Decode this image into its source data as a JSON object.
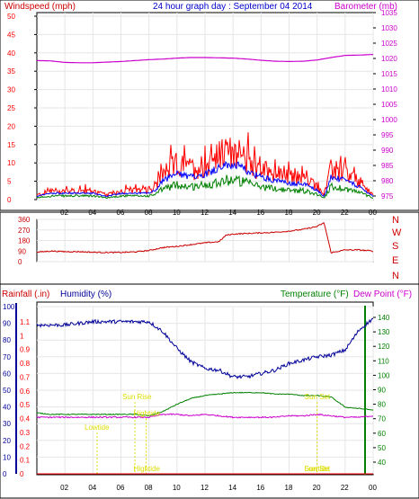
{
  "colors": {
    "wind": "#ff0000",
    "gust": "#ff0000",
    "wind_avg": "#0000ff",
    "wind_low": "#008000",
    "barometer": "#cc00cc",
    "direction": "#cc0000",
    "humidity": "#000099",
    "temperature": "#008000",
    "dewpoint": "#cc00cc",
    "rainfall": "#ff0000",
    "sun": "#dddd00",
    "grid": "#e6e6e6",
    "axis": "#000000"
  },
  "panel_top": {
    "title": "24 hour graph day : September 04 2014",
    "left_label": "Windspeed (mph)",
    "right_label": "Barometer (mb)",
    "left_ticks": [
      "0",
      "5",
      "10",
      "15",
      "20",
      "25",
      "30",
      "35",
      "40",
      "45",
      "50"
    ],
    "right_ticks": [
      "975",
      "980",
      "985",
      "990",
      "995",
      "1000",
      "1005",
      "1010",
      "1015",
      "1020",
      "1025",
      "1030",
      "1035"
    ],
    "x_ticks": [
      "02",
      "04",
      "06",
      "08",
      "10",
      "12",
      "14",
      "16",
      "18",
      "20",
      "22",
      "00"
    ]
  },
  "panel_mid": {
    "left_ticks": [
      "0",
      "90",
      "180",
      "270",
      "360"
    ],
    "compass": [
      "N",
      "W",
      "S",
      "E",
      "N"
    ]
  },
  "panel_bot": {
    "rain_label": "Rainfall (.in)",
    "humidity_label": "Humidity (%)",
    "temp_label": "Temperature (°F)",
    "dew_label": "Dew Point (°F)",
    "humidity_ticks": [
      "0",
      "10",
      "20",
      "30",
      "40",
      "50",
      "60",
      "70",
      "80",
      "90",
      "100"
    ],
    "rain_ticks": [
      "0",
      "0.1",
      "0.2",
      "0.3",
      "0.4",
      "0.5",
      "0.6",
      "0.7",
      "0.8",
      "0.9",
      "1",
      "1.1"
    ],
    "temp_ticks": [
      "40",
      "50",
      "60",
      "70",
      "80",
      "90",
      "100",
      "110",
      "120",
      "130",
      "140"
    ],
    "x_ticks": [
      "02",
      "04",
      "06",
      "08",
      "10",
      "12",
      "14",
      "16",
      "18",
      "20",
      "22",
      "00"
    ],
    "annotations": [
      {
        "label": "Lowtide",
        "hour": 4.3,
        "level": 0.3
      },
      {
        "label": "Sun Rise",
        "hour": 7.0,
        "level": 0.52
      },
      {
        "label": "Hightide",
        "hour": 7.8,
        "level": 0.4
      },
      {
        "label": "Hightide",
        "hour": 7.8,
        "level": 0.0
      },
      {
        "label": "Sun Set",
        "hour": 20.0,
        "level": 0.52
      },
      {
        "label": "Sun Set",
        "hour": 20.0,
        "level": 0.0
      },
      {
        "label": "Lowtide",
        "hour": 20.0,
        "level": 0.0
      }
    ]
  },
  "chart_data": [
    {
      "type": "line",
      "title": "24 hour graph day : September 04 2014",
      "x_unit": "hour",
      "xlim": [
        0,
        24
      ],
      "ylabel": "Windspeed (mph)",
      "ylim": [
        0,
        50
      ],
      "y2label": "Barometer (mb)",
      "y2lim": [
        975,
        1035
      ],
      "series": [
        {
          "name": "Windspeed (mph)",
          "axis": "left",
          "x": [
            0,
            1,
            2,
            3,
            4,
            5,
            6,
            7,
            8,
            8.5,
            9,
            10,
            11,
            12,
            13,
            14,
            15,
            16,
            17,
            18,
            19,
            20,
            20.5,
            21,
            22,
            23,
            24
          ],
          "y": [
            1,
            2,
            2,
            2,
            2,
            1,
            2,
            2,
            2,
            3,
            6,
            8,
            7,
            8,
            10,
            11,
            9,
            7,
            6,
            5,
            5,
            3,
            1,
            7,
            6,
            4,
            1
          ]
        },
        {
          "name": "Barometer (mb)",
          "axis": "right",
          "x": [
            0,
            1,
            2,
            3,
            4,
            5,
            6,
            7,
            8,
            9,
            10,
            11,
            12,
            13,
            14,
            15,
            16,
            17,
            18,
            19,
            20,
            21,
            22,
            23,
            24
          ],
          "y": [
            1019.3,
            1019.2,
            1018.7,
            1018.6,
            1018.6,
            1018.8,
            1019.0,
            1019.3,
            1019.6,
            1019.8,
            1020.1,
            1020.3,
            1020.3,
            1020.2,
            1020.1,
            1019.8,
            1019.4,
            1019.1,
            1019.0,
            1019.1,
            1019.5,
            1020.3,
            1021.0,
            1021.1,
            1021.3
          ]
        }
      ]
    },
    {
      "type": "line",
      "ylabel": "Wind direction",
      "ylim": [
        0,
        360
      ],
      "xlim": [
        0,
        24
      ],
      "series": [
        {
          "name": "Direction",
          "x": [
            0,
            1,
            2,
            3,
            4,
            5,
            6,
            7,
            8,
            9,
            10,
            11,
            12,
            13,
            13.5,
            14,
            15,
            16,
            17,
            18,
            19,
            20,
            20.5,
            21,
            22,
            23,
            24
          ],
          "y": [
            80,
            90,
            85,
            85,
            80,
            78,
            78,
            83,
            95,
            120,
            130,
            145,
            160,
            170,
            225,
            235,
            240,
            245,
            250,
            260,
            275,
            300,
            330,
            75,
            100,
            100,
            90
          ]
        }
      ]
    },
    {
      "type": "line",
      "ylim": [
        0,
        100
      ],
      "xlim": [
        0,
        24
      ],
      "ylabel": "Humidity (%)",
      "series": [
        {
          "name": "Humidity (%)",
          "axis": "humidity",
          "x": [
            0,
            1,
            2,
            3,
            4,
            5,
            6,
            7,
            8,
            9,
            10,
            11,
            12,
            13,
            14,
            15,
            16,
            17,
            18,
            19,
            20,
            21,
            22,
            23,
            24
          ],
          "y": [
            89,
            89,
            89,
            90,
            91,
            91,
            91,
            91,
            91,
            85,
            75,
            67,
            63,
            62,
            58,
            58,
            60,
            62,
            66,
            68,
            70,
            71,
            74,
            86,
            93
          ]
        },
        {
          "name": "Temperature (°F)",
          "axis": "temperature",
          "x": [
            0,
            1,
            2,
            3,
            4,
            5,
            6,
            7,
            8,
            9,
            10,
            11,
            12,
            13,
            14,
            15,
            16,
            17,
            18,
            19,
            20,
            21,
            22,
            23,
            24
          ],
          "y": [
            74,
            73,
            73,
            73,
            73,
            73,
            73,
            73,
            72,
            75,
            80,
            84,
            86,
            87,
            88,
            88,
            88,
            87,
            87,
            86,
            86,
            85,
            78,
            77,
            76
          ]
        },
        {
          "name": "Dew Point (°F)",
          "axis": "temperature",
          "x": [
            0,
            1,
            2,
            3,
            4,
            5,
            6,
            7,
            8,
            9,
            10,
            11,
            12,
            13,
            14,
            15,
            16,
            17,
            18,
            19,
            20,
            21,
            22,
            23,
            24
          ],
          "y": [
            71,
            71,
            71,
            71,
            71,
            71,
            71,
            71,
            71,
            73,
            73,
            72,
            73,
            72,
            71,
            71,
            71,
            71,
            72,
            72,
            73,
            72,
            71,
            71,
            72
          ]
        },
        {
          "name": "Rainfall (.in)",
          "axis": "rainfall",
          "x": [
            0,
            24
          ],
          "y": [
            0,
            0
          ]
        }
      ]
    }
  ]
}
